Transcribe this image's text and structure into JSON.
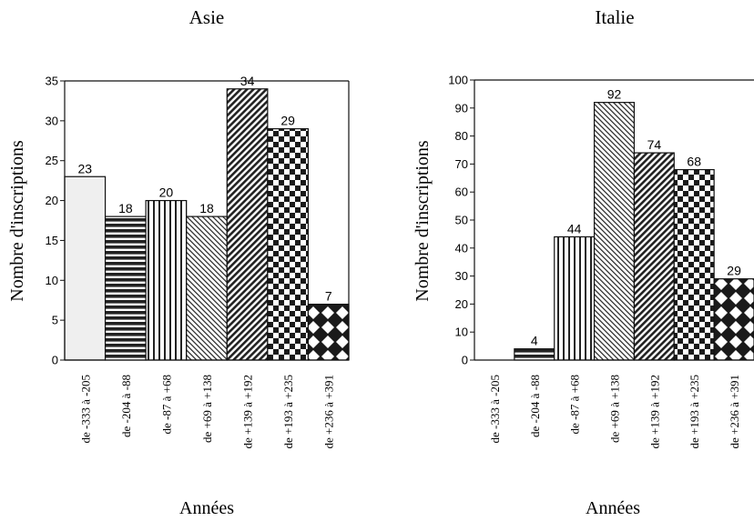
{
  "chart_data": [
    {
      "type": "bar",
      "title": "Asie",
      "xlabel": "Années",
      "ylabel": "Nombre d'inscriptions",
      "ylim": [
        0,
        35
      ],
      "yticks": [
        0,
        5,
        10,
        15,
        20,
        25,
        30,
        35
      ],
      "categories": [
        "de -333 à -205",
        "de -204 à -88",
        "de -87 à +68",
        "de +69 à +138",
        "de +139 à +192",
        "de +193 à +235",
        "de +236 à +391"
      ],
      "values": [
        23,
        18,
        20,
        18,
        34,
        29,
        7
      ],
      "labels": [
        "23",
        "18",
        "20",
        "18",
        "34",
        "29",
        "7"
      ]
    },
    {
      "type": "bar",
      "title": "Italie",
      "xlabel": "Années",
      "ylabel": "Nombre d'inscriptions",
      "ylim": [
        0,
        100
      ],
      "yticks": [
        0,
        10,
        20,
        30,
        40,
        50,
        60,
        70,
        80,
        90,
        100
      ],
      "categories": [
        "de -333 à -205",
        "de -204 à -88",
        "de -87 à +68",
        "de +69 à +138",
        "de +139 à +192",
        "de +193 à +235",
        "de +236 à +391"
      ],
      "values": [
        0,
        4,
        44,
        92,
        74,
        68,
        29
      ],
      "labels": [
        "",
        "4",
        "44",
        "92",
        "74",
        "68",
        "29"
      ]
    }
  ]
}
